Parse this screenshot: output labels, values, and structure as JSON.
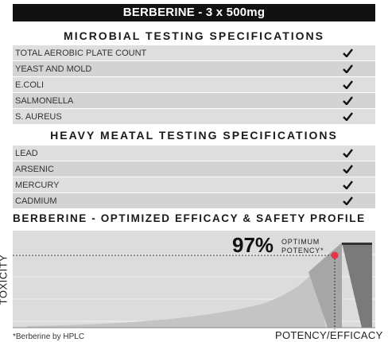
{
  "title": "BERBERINE - 3 x 500mg",
  "microbial": {
    "heading": "MICROBIAL TESTING SPECIFICATIONS",
    "items": [
      "TOTAL AEROBIC PLATE COUNT",
      "YEAST AND MOLD",
      "E.COLI",
      "SALMONELLA",
      "S. AUREUS"
    ]
  },
  "heavy_metal": {
    "heading": "HEAVY MEATAL TESTING SPECIFICATIONS",
    "items": [
      "LEAD",
      "ARSENIC",
      "MERCURY",
      "CADMIUM"
    ]
  },
  "check_icon": "checkmark-icon",
  "chart": {
    "heading": "BERBERINE - OPTIMIZED EFFICACY & SAFETY PROFILE",
    "percent": "97%",
    "percent_label_1": "OPTIMUM",
    "percent_label_2": "POTENCY*",
    "ylabel": "TOXICITY",
    "xlabel": "POTENCY/EFFICACY",
    "footnote": "*Berberine by HPLC",
    "accent_color": "#e8324a"
  }
}
